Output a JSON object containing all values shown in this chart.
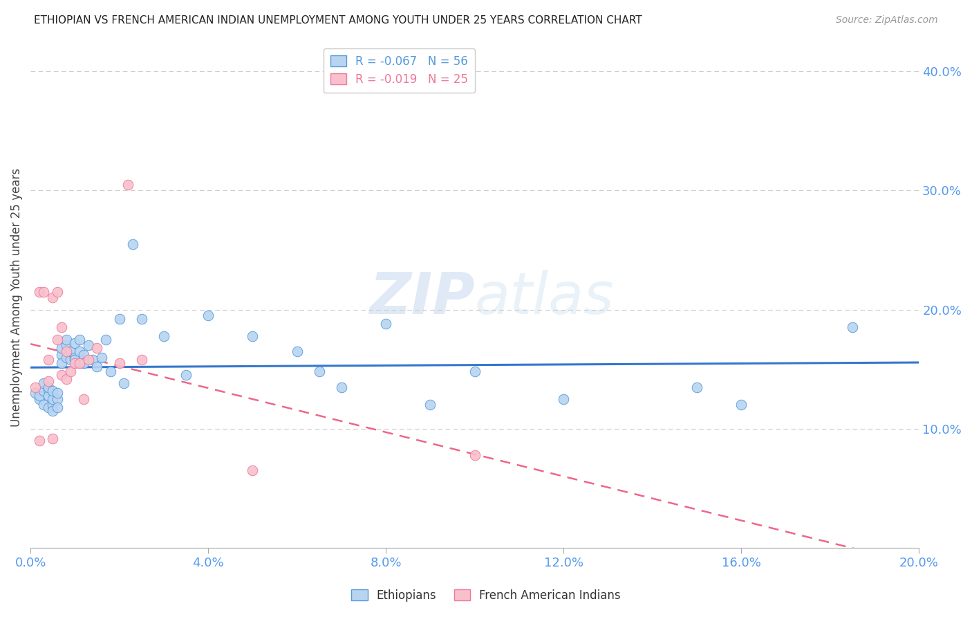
{
  "title": "ETHIOPIAN VS FRENCH AMERICAN INDIAN UNEMPLOYMENT AMONG YOUTH UNDER 25 YEARS CORRELATION CHART",
  "source": "Source: ZipAtlas.com",
  "ylabel": "Unemployment Among Youth under 25 years",
  "xlim": [
    0.0,
    0.2
  ],
  "ylim": [
    0.0,
    0.42
  ],
  "x_ticks": [
    0.0,
    0.04,
    0.08,
    0.12,
    0.16,
    0.2
  ],
  "y_ticks_right": [
    0.1,
    0.2,
    0.3,
    0.4
  ],
  "blue_R": -0.067,
  "blue_N": 56,
  "pink_R": -0.019,
  "pink_N": 25,
  "blue_fill": "#b8d4f0",
  "pink_fill": "#f8c0cc",
  "blue_edge": "#5599dd",
  "pink_edge": "#ee7799",
  "blue_line": "#3377cc",
  "pink_line": "#ee6688",
  "tick_color": "#5599ee",
  "grid_color": "#cccccc",
  "watermark_color": "#ccddf0",
  "blue_x": [
    0.001,
    0.002,
    0.002,
    0.003,
    0.003,
    0.003,
    0.004,
    0.004,
    0.004,
    0.004,
    0.005,
    0.005,
    0.005,
    0.005,
    0.006,
    0.006,
    0.006,
    0.007,
    0.007,
    0.007,
    0.008,
    0.008,
    0.008,
    0.009,
    0.009,
    0.01,
    0.01,
    0.01,
    0.011,
    0.011,
    0.012,
    0.012,
    0.013,
    0.014,
    0.015,
    0.016,
    0.017,
    0.018,
    0.02,
    0.021,
    0.023,
    0.025,
    0.03,
    0.035,
    0.04,
    0.05,
    0.06,
    0.065,
    0.07,
    0.08,
    0.09,
    0.1,
    0.12,
    0.15,
    0.16,
    0.185
  ],
  "blue_y": [
    0.13,
    0.125,
    0.128,
    0.132,
    0.12,
    0.138,
    0.118,
    0.133,
    0.128,
    0.135,
    0.12,
    0.115,
    0.125,
    0.132,
    0.125,
    0.118,
    0.13,
    0.162,
    0.155,
    0.168,
    0.17,
    0.175,
    0.16,
    0.158,
    0.165,
    0.16,
    0.172,
    0.158,
    0.165,
    0.175,
    0.162,
    0.155,
    0.17,
    0.158,
    0.152,
    0.16,
    0.175,
    0.148,
    0.192,
    0.138,
    0.255,
    0.192,
    0.178,
    0.145,
    0.195,
    0.178,
    0.165,
    0.148,
    0.135,
    0.188,
    0.12,
    0.148,
    0.125,
    0.135,
    0.12,
    0.185
  ],
  "pink_x": [
    0.001,
    0.002,
    0.002,
    0.003,
    0.004,
    0.004,
    0.005,
    0.005,
    0.006,
    0.006,
    0.007,
    0.007,
    0.008,
    0.008,
    0.009,
    0.01,
    0.011,
    0.012,
    0.013,
    0.015,
    0.02,
    0.022,
    0.025,
    0.05,
    0.1
  ],
  "pink_y": [
    0.135,
    0.09,
    0.215,
    0.215,
    0.14,
    0.158,
    0.092,
    0.21,
    0.175,
    0.215,
    0.185,
    0.145,
    0.142,
    0.165,
    0.148,
    0.155,
    0.155,
    0.125,
    0.158,
    0.168,
    0.155,
    0.305,
    0.158,
    0.065,
    0.078
  ]
}
